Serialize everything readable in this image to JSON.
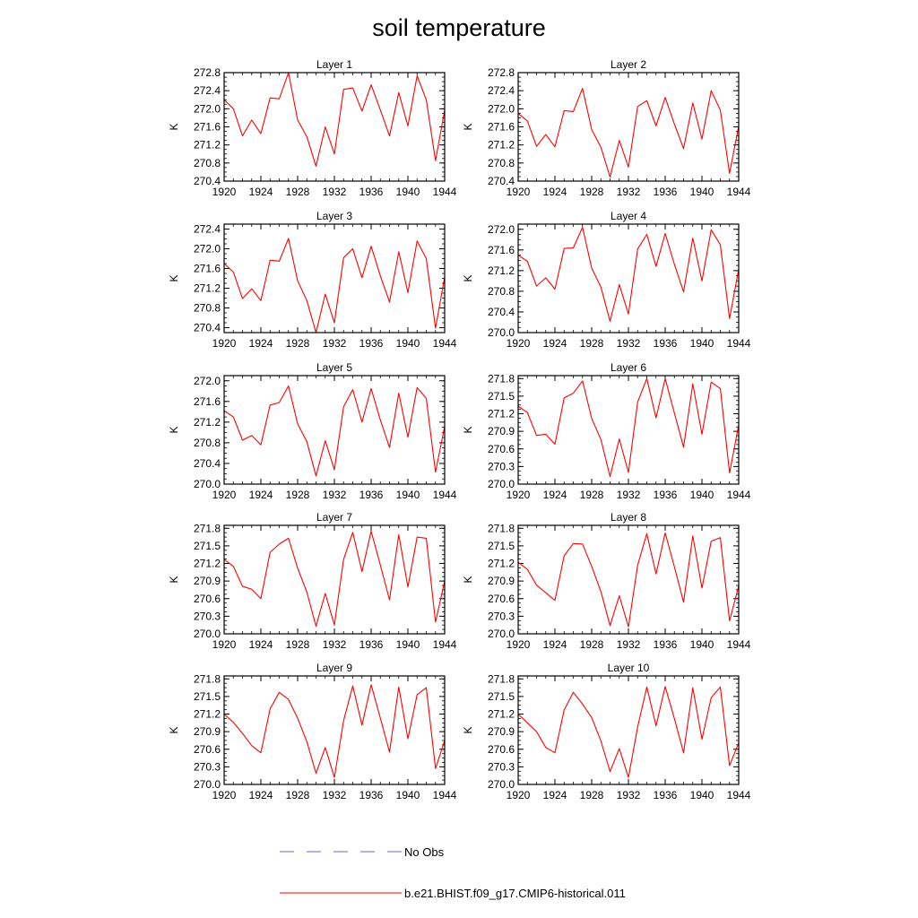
{
  "title": "soil temperature",
  "colors": {
    "model": "#ff0000",
    "obs": "#6a6ad8",
    "axis": "#000000"
  },
  "legend": [
    {
      "label": "No Obs",
      "style": "dashed",
      "color": "#6a6ad8"
    },
    {
      "label": "b.e21.BHIST.f09_g17.CMIP6-historical.011",
      "style": "solid",
      "color": "#ff0000"
    }
  ],
  "chart_data": [
    {
      "type": "line",
      "title": "Layer 1",
      "ylabel": "K",
      "xlim": [
        1920,
        1944
      ],
      "ylim": [
        270.4,
        272.8
      ],
      "xticks": [
        1920,
        1924,
        1928,
        1932,
        1936,
        1940,
        1944
      ],
      "yticks": [
        "270.4",
        "270.8",
        "271.2",
        "271.6",
        "272.0",
        "272.4",
        "272.8"
      ],
      "x": [
        1920,
        1921,
        1922,
        1923,
        1924,
        1925,
        1926,
        1927,
        1928,
        1929,
        1930,
        1931,
        1932,
        1933,
        1934,
        1935,
        1936,
        1937,
        1938,
        1939,
        1940,
        1941,
        1942,
        1943,
        1944
      ],
      "series": [
        {
          "name": "b.e21.BHIST.f09_g17.CMIP6-historical.011",
          "values": [
            272.2,
            272.0,
            271.4,
            271.75,
            271.45,
            272.24,
            272.22,
            272.8,
            271.75,
            271.38,
            270.73,
            271.6,
            271.0,
            272.43,
            272.46,
            271.95,
            272.53,
            271.97,
            271.4,
            272.36,
            271.62,
            272.73,
            272.2,
            270.85,
            271.97
          ]
        }
      ]
    },
    {
      "type": "line",
      "title": "Layer 2",
      "ylabel": "K",
      "xlim": [
        1920,
        1944
      ],
      "ylim": [
        270.4,
        272.8
      ],
      "xticks": [
        1920,
        1924,
        1928,
        1932,
        1936,
        1940,
        1944
      ],
      "yticks": [
        "270.4",
        "270.8",
        "271.2",
        "271.6",
        "272.0",
        "272.4",
        "272.8"
      ],
      "x": [
        1920,
        1921,
        1922,
        1923,
        1924,
        1925,
        1926,
        1927,
        1928,
        1929,
        1930,
        1931,
        1932,
        1933,
        1934,
        1935,
        1936,
        1937,
        1938,
        1939,
        1940,
        1941,
        1942,
        1943,
        1944
      ],
      "series": [
        {
          "name": "b.e21.BHIST.f09_g17.CMIP6-historical.011",
          "values": [
            271.9,
            271.73,
            271.17,
            271.43,
            271.16,
            271.96,
            271.94,
            272.45,
            271.54,
            271.15,
            270.49,
            271.3,
            270.71,
            272.05,
            272.18,
            271.62,
            272.25,
            271.66,
            271.12,
            272.13,
            271.33,
            272.4,
            271.97,
            270.57,
            271.62
          ]
        }
      ]
    },
    {
      "type": "line",
      "title": "Layer 3",
      "ylabel": "K",
      "xlim": [
        1920,
        1944
      ],
      "ylim": [
        270.3,
        272.5
      ],
      "xticks": [
        1920,
        1924,
        1928,
        1932,
        1936,
        1940,
        1944
      ],
      "yticks": [
        "270.4",
        "270.8",
        "271.2",
        "271.6",
        "272.0",
        "272.4"
      ],
      "x": [
        1920,
        1921,
        1922,
        1923,
        1924,
        1925,
        1926,
        1927,
        1928,
        1929,
        1930,
        1931,
        1932,
        1933,
        1934,
        1935,
        1936,
        1937,
        1938,
        1939,
        1940,
        1941,
        1942,
        1943,
        1944
      ],
      "series": [
        {
          "name": "b.e21.BHIST.f09_g17.CMIP6-historical.011",
          "values": [
            271.7,
            271.53,
            270.99,
            271.19,
            270.95,
            271.77,
            271.75,
            272.21,
            271.35,
            270.95,
            270.3,
            271.08,
            270.5,
            271.82,
            272.0,
            271.41,
            272.05,
            271.45,
            270.92,
            271.94,
            271.11,
            272.16,
            271.8,
            270.39,
            271.43
          ]
        }
      ]
    },
    {
      "type": "line",
      "title": "Layer 4",
      "ylabel": "K",
      "xlim": [
        1920,
        1944
      ],
      "ylim": [
        270.0,
        272.1
      ],
      "xticks": [
        1920,
        1924,
        1928,
        1932,
        1936,
        1940,
        1944
      ],
      "yticks": [
        "270.0",
        "270.4",
        "270.8",
        "271.2",
        "271.6",
        "272.0"
      ],
      "x": [
        1920,
        1921,
        1922,
        1923,
        1924,
        1925,
        1926,
        1927,
        1928,
        1929,
        1930,
        1931,
        1932,
        1933,
        1934,
        1935,
        1936,
        1937,
        1938,
        1939,
        1940,
        1941,
        1942,
        1943,
        1944
      ],
      "series": [
        {
          "name": "b.e21.BHIST.f09_g17.CMIP6-historical.011",
          "values": [
            271.5,
            271.38,
            270.9,
            271.06,
            270.84,
            271.63,
            271.64,
            272.04,
            271.25,
            270.88,
            270.22,
            270.93,
            270.36,
            271.62,
            271.9,
            271.28,
            271.92,
            271.32,
            270.79,
            271.83,
            271.0,
            271.99,
            271.7,
            270.27,
            271.23
          ]
        }
      ]
    },
    {
      "type": "line",
      "title": "Layer 5",
      "ylabel": "K",
      "xlim": [
        1920,
        1944
      ],
      "ylim": [
        270.0,
        272.1
      ],
      "xticks": [
        1920,
        1924,
        1928,
        1932,
        1936,
        1940,
        1944
      ],
      "yticks": [
        "270.0",
        "270.4",
        "270.8",
        "271.2",
        "271.6",
        "272.0"
      ],
      "x": [
        1920,
        1921,
        1922,
        1923,
        1924,
        1925,
        1926,
        1927,
        1928,
        1929,
        1930,
        1931,
        1932,
        1933,
        1934,
        1935,
        1936,
        1937,
        1938,
        1939,
        1940,
        1941,
        1942,
        1943,
        1944
      ],
      "series": [
        {
          "name": "b.e21.BHIST.f09_g17.CMIP6-historical.011",
          "values": [
            271.42,
            271.3,
            270.85,
            270.94,
            270.76,
            271.53,
            271.58,
            271.9,
            271.17,
            270.82,
            270.16,
            270.84,
            270.28,
            271.5,
            271.83,
            271.2,
            271.85,
            271.24,
            270.71,
            271.76,
            270.91,
            271.87,
            271.66,
            270.23,
            271.12
          ]
        }
      ]
    },
    {
      "type": "line",
      "title": "Layer 6",
      "ylabel": "K",
      "xlim": [
        1920,
        1944
      ],
      "ylim": [
        270.0,
        271.85
      ],
      "xticks": [
        1920,
        1924,
        1928,
        1932,
        1936,
        1940,
        1944
      ],
      "yticks": [
        "270.0",
        "270.3",
        "270.6",
        "270.9",
        "271.2",
        "271.5",
        "271.8"
      ],
      "x": [
        1920,
        1921,
        1922,
        1923,
        1924,
        1925,
        1926,
        1927,
        1928,
        1929,
        1930,
        1931,
        1932,
        1933,
        1934,
        1935,
        1936,
        1937,
        1938,
        1939,
        1940,
        1941,
        1942,
        1943,
        1944
      ],
      "series": [
        {
          "name": "b.e21.BHIST.f09_g17.CMIP6-historical.011",
          "values": [
            271.33,
            271.22,
            270.83,
            270.85,
            270.68,
            271.47,
            271.55,
            271.76,
            271.12,
            270.76,
            270.13,
            270.77,
            270.2,
            271.4,
            271.8,
            271.13,
            271.8,
            271.21,
            270.63,
            271.71,
            270.85,
            271.74,
            271.63,
            270.19,
            271.01
          ]
        }
      ]
    },
    {
      "type": "line",
      "title": "Layer 7",
      "ylabel": "K",
      "xlim": [
        1920,
        1944
      ],
      "ylim": [
        270.0,
        271.85
      ],
      "xticks": [
        1920,
        1924,
        1928,
        1932,
        1936,
        1940,
        1944
      ],
      "yticks": [
        "270.0",
        "270.3",
        "270.6",
        "270.9",
        "271.2",
        "271.5",
        "271.8"
      ],
      "x": [
        1920,
        1921,
        1922,
        1923,
        1924,
        1925,
        1926,
        1927,
        1928,
        1929,
        1930,
        1931,
        1932,
        1933,
        1934,
        1935,
        1936,
        1937,
        1938,
        1939,
        1940,
        1941,
        1942,
        1943,
        1944
      ],
      "series": [
        {
          "name": "b.e21.BHIST.f09_g17.CMIP6-historical.011",
          "values": [
            271.27,
            271.15,
            270.81,
            270.76,
            270.6,
            271.39,
            271.53,
            271.63,
            271.12,
            270.71,
            270.13,
            270.69,
            270.15,
            271.27,
            271.73,
            271.06,
            271.75,
            271.17,
            270.58,
            271.69,
            270.8,
            271.65,
            271.63,
            270.2,
            270.9
          ]
        }
      ]
    },
    {
      "type": "line",
      "title": "Layer 8",
      "ylabel": "K",
      "xlim": [
        1920,
        1944
      ],
      "ylim": [
        270.0,
        271.85
      ],
      "xticks": [
        1920,
        1924,
        1928,
        1932,
        1936,
        1940,
        1944
      ],
      "yticks": [
        "270.0",
        "270.3",
        "270.6",
        "270.9",
        "271.2",
        "271.5",
        "271.8"
      ],
      "x": [
        1920,
        1921,
        1922,
        1923,
        1924,
        1925,
        1926,
        1927,
        1928,
        1929,
        1930,
        1931,
        1932,
        1933,
        1934,
        1935,
        1936,
        1937,
        1938,
        1939,
        1940,
        1941,
        1942,
        1943,
        1944
      ],
      "series": [
        {
          "name": "b.e21.BHIST.f09_g17.CMIP6-historical.011",
          "values": [
            271.22,
            271.1,
            270.83,
            270.7,
            270.57,
            271.33,
            271.54,
            271.53,
            271.15,
            270.72,
            270.14,
            270.65,
            270.12,
            271.17,
            271.71,
            271.02,
            271.72,
            271.14,
            270.54,
            271.67,
            270.78,
            271.58,
            271.64,
            270.22,
            270.82
          ]
        }
      ]
    },
    {
      "type": "line",
      "title": "Layer 9",
      "ylabel": "K",
      "xlim": [
        1920,
        1944
      ],
      "ylim": [
        270.0,
        271.85
      ],
      "xticks": [
        1920,
        1924,
        1928,
        1932,
        1936,
        1940,
        1944
      ],
      "yticks": [
        "270.0",
        "270.3",
        "270.6",
        "270.9",
        "271.2",
        "271.5",
        "271.8"
      ],
      "x": [
        1920,
        1921,
        1922,
        1923,
        1924,
        1925,
        1926,
        1927,
        1928,
        1929,
        1930,
        1931,
        1932,
        1933,
        1934,
        1935,
        1936,
        1937,
        1938,
        1939,
        1940,
        1941,
        1942,
        1943,
        1944
      ],
      "series": [
        {
          "name": "b.e21.BHIST.f09_g17.CMIP6-historical.011",
          "values": [
            271.2,
            271.06,
            270.87,
            270.66,
            270.54,
            271.29,
            271.57,
            271.45,
            271.13,
            270.73,
            270.19,
            270.63,
            270.12,
            271.09,
            271.68,
            271.01,
            271.7,
            271.13,
            270.55,
            271.66,
            270.78,
            271.53,
            271.65,
            270.27,
            270.75
          ]
        }
      ]
    },
    {
      "type": "line",
      "title": "Layer 10",
      "ylabel": "K",
      "xlim": [
        1920,
        1944
      ],
      "ylim": [
        270.0,
        271.85
      ],
      "xticks": [
        1920,
        1924,
        1928,
        1932,
        1936,
        1940,
        1944
      ],
      "yticks": [
        "270.0",
        "270.3",
        "270.6",
        "270.9",
        "271.2",
        "271.5",
        "271.8"
      ],
      "x": [
        1920,
        1921,
        1922,
        1923,
        1924,
        1925,
        1926,
        1927,
        1928,
        1929,
        1930,
        1931,
        1932,
        1933,
        1934,
        1935,
        1936,
        1937,
        1938,
        1939,
        1940,
        1941,
        1942,
        1943,
        1944
      ],
      "series": [
        {
          "name": "b.e21.BHIST.f09_g17.CMIP6-historical.011",
          "values": [
            271.2,
            271.05,
            270.9,
            270.63,
            270.54,
            271.27,
            271.57,
            271.37,
            271.14,
            270.74,
            270.22,
            270.61,
            270.12,
            270.98,
            271.66,
            271.0,
            271.67,
            271.12,
            270.54,
            271.65,
            270.77,
            271.48,
            271.66,
            270.32,
            270.71
          ]
        }
      ]
    }
  ]
}
